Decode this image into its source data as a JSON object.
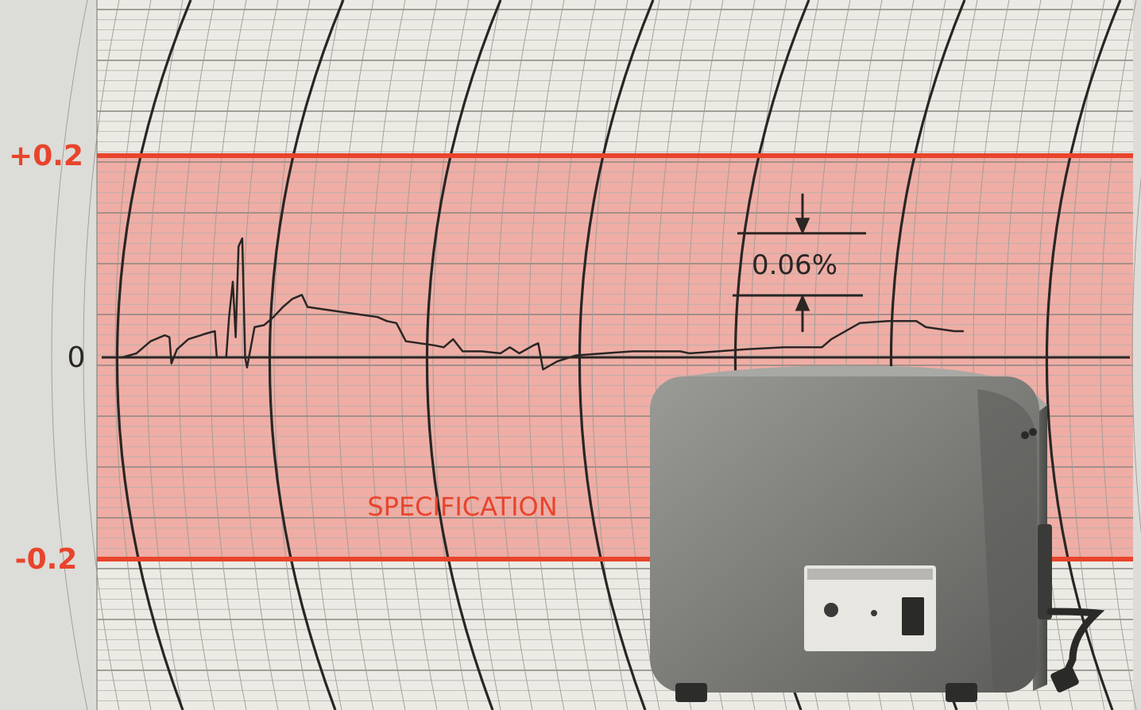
{
  "chart_data": {
    "type": "line",
    "ylim": [
      -0.28,
      0.28
    ],
    "y_ticks": [
      {
        "value": 0.2,
        "label": "+0.2"
      },
      {
        "value": 0,
        "label": "0"
      },
      {
        "value": -0.2,
        "label": "-0.2"
      }
    ],
    "band": {
      "from": -0.2,
      "to": 0.2,
      "label": "SPECIFICATION",
      "color": "#f0a29a",
      "line_color": "#e8442c"
    },
    "annotation": {
      "label": "0.06%",
      "y_from": 0.06,
      "y_to": 0.0
    },
    "series": [
      {
        "values": [
          [
            0.0,
            0.0
          ],
          [
            0.02,
            0.0
          ],
          [
            0.035,
            0.004
          ],
          [
            0.05,
            0.016
          ],
          [
            0.065,
            0.022
          ],
          [
            0.07,
            0.02
          ],
          [
            0.072,
            -0.006
          ],
          [
            0.078,
            0.008
          ],
          [
            0.09,
            0.018
          ],
          [
            0.11,
            0.024
          ],
          [
            0.118,
            0.026
          ],
          [
            0.12,
            0.0
          ],
          [
            0.125,
            0.0
          ],
          [
            0.13,
            0.0
          ],
          [
            0.133,
            0.04
          ],
          [
            0.137,
            0.075
          ],
          [
            0.14,
            0.02
          ],
          [
            0.143,
            0.11
          ],
          [
            0.147,
            0.118
          ],
          [
            0.15,
            0.0
          ],
          [
            0.152,
            -0.01
          ],
          [
            0.16,
            0.03
          ],
          [
            0.17,
            0.032
          ],
          [
            0.18,
            0.04
          ],
          [
            0.19,
            0.05
          ],
          [
            0.2,
            0.058
          ],
          [
            0.21,
            0.062
          ],
          [
            0.216,
            0.05
          ],
          [
            0.23,
            0.048
          ],
          [
            0.26,
            0.044
          ],
          [
            0.29,
            0.04
          ],
          [
            0.3,
            0.036
          ],
          [
            0.31,
            0.034
          ],
          [
            0.32,
            0.016
          ],
          [
            0.35,
            0.012
          ],
          [
            0.36,
            0.01
          ],
          [
            0.37,
            0.018
          ],
          [
            0.38,
            0.006
          ],
          [
            0.4,
            0.006
          ],
          [
            0.42,
            0.004
          ],
          [
            0.43,
            0.01
          ],
          [
            0.44,
            0.004
          ],
          [
            0.455,
            0.012
          ],
          [
            0.46,
            0.014
          ],
          [
            0.465,
            -0.012
          ],
          [
            0.48,
            -0.004
          ],
          [
            0.5,
            0.002
          ],
          [
            0.53,
            0.004
          ],
          [
            0.56,
            0.006
          ],
          [
            0.6,
            0.006
          ],
          [
            0.61,
            0.006
          ],
          [
            0.62,
            0.004
          ],
          [
            0.65,
            0.006
          ],
          [
            0.68,
            0.008
          ],
          [
            0.72,
            0.01
          ],
          [
            0.76,
            0.01
          ],
          [
            0.77,
            0.018
          ],
          [
            0.8,
            0.034
          ],
          [
            0.83,
            0.036
          ],
          [
            0.86,
            0.036
          ],
          [
            0.87,
            0.03
          ],
          [
            0.9,
            0.026
          ],
          [
            0.91,
            0.026
          ]
        ]
      }
    ]
  }
}
